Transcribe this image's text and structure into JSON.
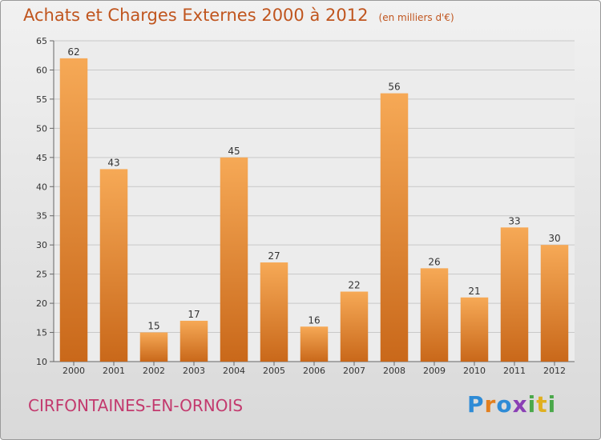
{
  "title": "Achats et Charges Externes 2000 à 2012",
  "subtitle": "(en milliers d'€)",
  "commune": "CIRFONTAINES-EN-ORNOIS",
  "logo": {
    "letters": [
      "P",
      "r",
      "o",
      "x",
      "i",
      "t",
      "i"
    ],
    "colors": [
      "#2e8bd6",
      "#e27f1f",
      "#2e8bd6",
      "#8a3fb5",
      "#4aa84a",
      "#e0b020",
      "#4aa84a"
    ]
  },
  "colors": {
    "title": "#c0551e",
    "commune": "#c33a6e",
    "bar_top": "#f6a956",
    "bar_bottom": "#c9681a"
  },
  "chart_data": {
    "type": "bar",
    "title": "Achats et Charges Externes 2000 à 2012",
    "subtitle": "(en milliers d'€)",
    "categories": [
      "2000",
      "2001",
      "2002",
      "2003",
      "2004",
      "2005",
      "2006",
      "2007",
      "2008",
      "2009",
      "2010",
      "2011",
      "2012"
    ],
    "values": [
      62,
      43,
      15,
      17,
      45,
      27,
      16,
      22,
      56,
      26,
      21,
      33,
      30
    ],
    "ylim": [
      10,
      65
    ],
    "yticks": [
      10,
      15,
      20,
      25,
      30,
      35,
      40,
      45,
      50,
      55,
      60,
      65
    ],
    "grid": true
  }
}
